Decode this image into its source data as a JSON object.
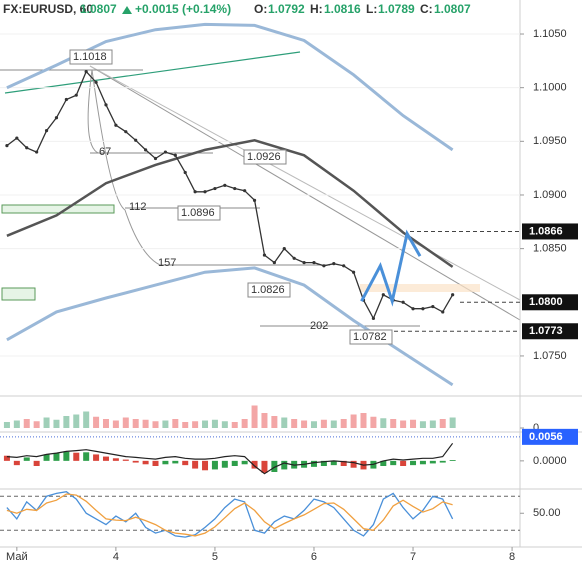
{
  "header": {
    "symbol": "FX:EURUSD, 60",
    "last": 1.0807,
    "change": "+0.0015 (+0.14%)",
    "open_label": "O:",
    "open": 1.0792,
    "high_label": "H:",
    "high": 1.0816,
    "low_label": "L:",
    "low": 1.0789,
    "close_label": "C:",
    "close": 1.0807
  },
  "chart_data": [
    {
      "type": "line",
      "xlim": [
        2.83,
        8.08
      ],
      "ylim": [
        1.07136,
        1.10817
      ],
      "xticks": [
        {
          "value": 3,
          "label": "Май"
        },
        4,
        5,
        6,
        7,
        8
      ],
      "yticks": [
        {
          "value": 1.105,
          "label": "1.1050"
        },
        {
          "value": 1.1,
          "label": "1.1000"
        },
        {
          "value": 1.095,
          "label": "1.0950"
        },
        {
          "value": 1.09,
          "label": "1.0900"
        },
        {
          "value": 1.085,
          "label": "1.0850"
        },
        {
          "value": 1.075,
          "label": "1.0750"
        }
      ],
      "x": [
        2.9,
        3.0,
        3.1,
        3.2,
        3.3,
        3.4,
        3.5,
        3.6,
        3.7,
        3.8,
        3.9,
        4.0,
        4.1,
        4.2,
        4.3,
        4.4,
        4.5,
        4.6,
        4.7,
        4.8,
        4.9,
        5.0,
        5.1,
        5.2,
        5.3,
        5.4,
        5.5,
        5.6,
        5.7,
        5.8,
        5.9,
        6.0,
        6.1,
        6.2,
        6.3,
        6.4,
        6.5,
        6.6,
        6.7,
        6.8,
        6.9,
        7.0,
        7.1,
        7.2,
        7.3,
        7.4
      ],
      "series": [
        {
          "color": "#333333",
          "values": [
            1.0946,
            1.0953,
            1.0944,
            1.094,
            1.096,
            1.0972,
            1.0989,
            1.0993,
            1.1015,
            1.1005,
            1.0984,
            1.0965,
            1.0959,
            1.0951,
            1.0942,
            1.0934,
            1.094,
            1.0937,
            1.0921,
            1.0903,
            1.0903,
            1.0906,
            1.0909,
            1.0906,
            1.0904,
            1.0895,
            1.0844,
            1.0837,
            1.085,
            1.0841,
            1.0837,
            1.0837,
            1.0834,
            1.0836,
            1.0834,
            1.0828,
            1.0802,
            1.0785,
            1.0807,
            1.0802,
            1.08,
            1.0794,
            1.0794,
            1.0796,
            1.0791,
            1.0807
          ]
        }
      ],
      "bands": [
        {
          "color": "#555555",
          "x": [
            2.9,
            3.4,
            3.9,
            4.4,
            4.9,
            5.4,
            5.9,
            6.4,
            6.9,
            7.4
          ],
          "values": [
            1.0862,
            1.0881,
            1.0911,
            1.0928,
            1.0942,
            1.0951,
            1.0937,
            1.0904,
            1.0865,
            1.0833
          ]
        },
        {
          "color": "#9ab8d8",
          "x": [
            2.9,
            3.4,
            3.9,
            4.4,
            4.9,
            5.4,
            5.9,
            6.4,
            6.9,
            7.4
          ],
          "values": [
            1.1,
            1.1021,
            1.1043,
            1.1054,
            1.1059,
            1.1058,
            1.1044,
            1.1012,
            1.0974,
            1.0942
          ]
        },
        {
          "color": "#9ab8d8",
          "x": [
            2.9,
            3.4,
            3.9,
            4.4,
            4.9,
            5.4,
            5.9,
            6.4,
            6.9,
            7.4
          ],
          "values": [
            1.0765,
            1.0791,
            1.0804,
            1.0816,
            1.0828,
            1.0832,
            1.0816,
            1.0783,
            1.0753,
            1.0723
          ]
        }
      ],
      "projection": {
        "color": "#4a90d9",
        "x": [
          6.48,
          6.67,
          6.79,
          6.94,
          7.07
        ],
        "values": [
          1.0801,
          1.0834,
          1.0801,
          1.0864,
          1.0843
        ]
      },
      "price_labels": [
        1.0866,
        {
          "value": 1.08,
          "label": "1.0800"
        },
        1.0773
      ],
      "annotations": [
        1.1018,
        1.0926,
        1.0896,
        1.0826,
        1.0782
      ],
      "fan_labels": [
        67,
        112,
        157,
        202
      ]
    },
    {
      "type": "bar",
      "xlim": [
        2.83,
        8.08
      ],
      "ylim": [
        0,
        40
      ],
      "yticks": [
        0
      ],
      "x": [
        2.9,
        3.0,
        3.1,
        3.2,
        3.3,
        3.4,
        3.5,
        3.6,
        3.7,
        3.8,
        3.9,
        4.0,
        4.1,
        4.2,
        4.3,
        4.4,
        4.5,
        4.6,
        4.7,
        4.8,
        4.9,
        5.0,
        5.1,
        5.2,
        5.3,
        5.4,
        5.5,
        5.6,
        5.7,
        5.8,
        5.9,
        6.0,
        6.1,
        6.2,
        6.3,
        6.4,
        6.5,
        6.6,
        6.7,
        6.8,
        6.9,
        7.0,
        7.1,
        7.2,
        7.3,
        7.4
      ],
      "values": [
        8,
        10,
        12,
        9,
        14,
        11,
        16,
        18,
        22,
        15,
        12,
        10,
        14,
        12,
        11,
        9,
        10,
        12,
        8,
        9,
        10,
        11,
        9,
        8,
        12,
        30,
        20,
        16,
        14,
        12,
        10,
        9,
        11,
        10,
        12,
        18,
        20,
        15,
        13,
        12,
        10,
        11,
        9,
        10,
        12,
        14
      ]
    },
    {
      "type": "histogram-line",
      "xlim": [
        2.83,
        8.08
      ],
      "ylim": [
        -0.0061,
        0.0065
      ],
      "yticks": [
        {
          "value": 0,
          "label": "0.0000"
        }
      ],
      "x": [
        2.9,
        3.0,
        3.1,
        3.2,
        3.3,
        3.4,
        3.5,
        3.6,
        3.7,
        3.8,
        3.9,
        4.0,
        4.1,
        4.2,
        4.3,
        4.4,
        4.5,
        4.6,
        4.7,
        4.8,
        4.9,
        5.0,
        5.1,
        5.2,
        5.3,
        5.4,
        5.5,
        5.6,
        5.7,
        5.8,
        5.9,
        6.0,
        6.1,
        6.2,
        6.3,
        6.4,
        6.5,
        6.6,
        6.7,
        6.8,
        6.9,
        7.0,
        7.1,
        7.2,
        7.3,
        7.4
      ],
      "values": [
        0.0012,
        -0.001,
        0.0008,
        -0.0012,
        0.0015,
        0.0018,
        0.0021,
        0.0019,
        0.002,
        0.0015,
        0.001,
        0.0006,
        0.0003,
        -0.0004,
        -0.0008,
        -0.0012,
        -0.0008,
        -0.0006,
        -0.001,
        -0.0018,
        -0.0022,
        -0.002,
        -0.0016,
        -0.0012,
        -0.0008,
        -0.0018,
        -0.0028,
        -0.0026,
        -0.002,
        -0.0018,
        -0.0016,
        -0.0014,
        -0.0012,
        -0.001,
        -0.0012,
        -0.0016,
        -0.002,
        -0.0018,
        -0.0012,
        -0.001,
        -0.0012,
        -0.001,
        -0.0008,
        -0.0006,
        -0.0004,
        0.0002
      ],
      "line": {
        "color": "#222222",
        "values": [
          0.001,
          0.0008,
          0.0012,
          0.001,
          0.0015,
          0.0018,
          0.0022,
          0.0024,
          0.0026,
          0.0022,
          0.0018,
          0.0014,
          0.001,
          0.0008,
          0.0006,
          0.0004,
          0.0008,
          0.001,
          0.0006,
          0.0004,
          0.0004,
          0.0006,
          0.001,
          0.0012,
          0.001,
          -0.0012,
          -0.003,
          -0.0015,
          -0.0005,
          -0.001,
          -0.0008,
          -0.0004,
          -0.0002,
          0.0,
          -0.0002,
          -0.0004,
          -0.001,
          -0.0008,
          0.0,
          0.0004,
          0.0002,
          0.0004,
          0.0006,
          0.0006,
          0.001,
          0.0041
        ]
      },
      "current_label": {
        "value": 0.0056,
        "label": "0.0056"
      }
    },
    {
      "type": "line",
      "xlim": [
        2.83,
        8.08
      ],
      "ylim": [
        -6,
        91
      ],
      "yticks": [
        {
          "value": 50,
          "label": "50.00"
        }
      ],
      "levels": [
        20,
        80
      ],
      "x": [
        2.9,
        3.0,
        3.1,
        3.2,
        3.3,
        3.4,
        3.5,
        3.6,
        3.7,
        3.8,
        3.9,
        4.0,
        4.1,
        4.2,
        4.3,
        4.4,
        4.5,
        4.6,
        4.7,
        4.8,
        4.9,
        5.0,
        5.1,
        5.2,
        5.3,
        5.4,
        5.5,
        5.6,
        5.7,
        5.8,
        5.9,
        6.0,
        6.1,
        6.2,
        6.3,
        6.4,
        6.5,
        6.6,
        6.7,
        6.8,
        6.9,
        7.0,
        7.1,
        7.2,
        7.3,
        7.4
      ],
      "series": [
        {
          "color": "#4a90d9",
          "values": [
            60,
            40,
            70,
            55,
            80,
            85,
            88,
            75,
            50,
            40,
            30,
            45,
            35,
            50,
            25,
            15,
            20,
            10,
            8,
            12,
            25,
            40,
            60,
            75,
            70,
            20,
            15,
            35,
            45,
            40,
            55,
            75,
            70,
            60,
            40,
            20,
            10,
            30,
            75,
            85,
            60,
            40,
            55,
            80,
            75,
            40
          ]
        },
        {
          "color": "#f0a040",
          "values": [
            55,
            50,
            57,
            55,
            68,
            73,
            84,
            82,
            71,
            55,
            40,
            38,
            37,
            43,
            37,
            30,
            20,
            15,
            13,
            10,
            15,
            26,
            42,
            58,
            68,
            55,
            35,
            23,
            32,
            40,
            47,
            57,
            67,
            68,
            57,
            40,
            23,
            20,
            38,
            63,
            73,
            62,
            52,
            58,
            70,
            65
          ]
        }
      ]
    }
  ]
}
